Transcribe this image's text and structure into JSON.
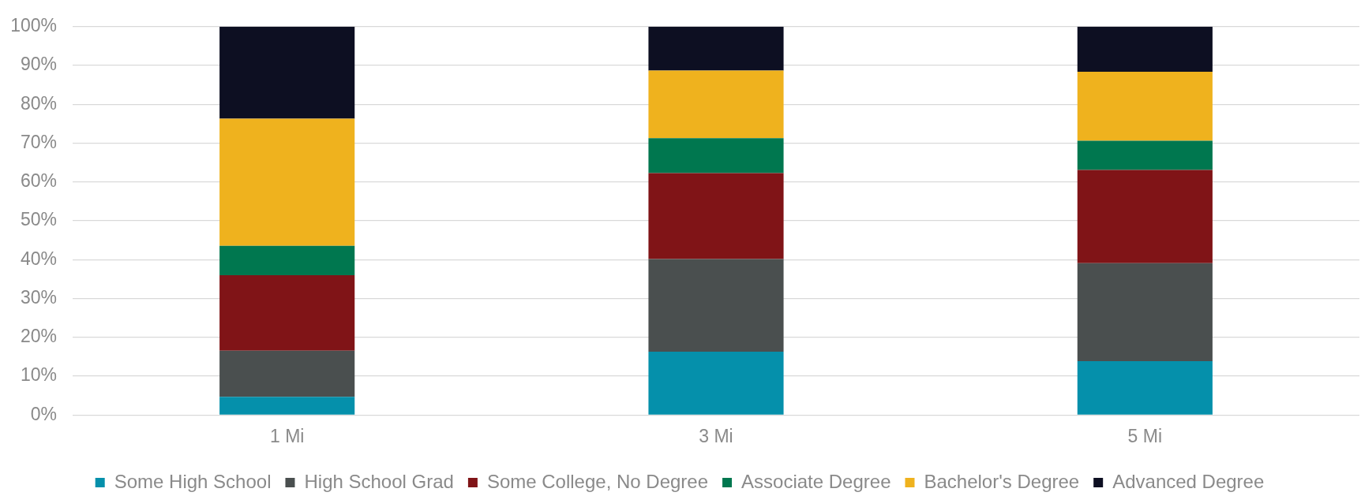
{
  "chart_data": {
    "type": "bar",
    "stacked": true,
    "categories": [
      "1 Mi",
      "3 Mi",
      "5 Mi"
    ],
    "series": [
      {
        "name": "Some High School",
        "color": "#0590ab",
        "values": [
          4.7,
          16.3,
          13.9
        ]
      },
      {
        "name": "High School Grad",
        "color": "#4a4f4f",
        "values": [
          11.9,
          23.9,
          25.2
        ]
      },
      {
        "name": "Some College, No Degree",
        "color": "#801417",
        "values": [
          19.4,
          22.1,
          24.0
        ]
      },
      {
        "name": "Associate Degree",
        "color": "#00774f",
        "values": [
          7.6,
          9.0,
          7.5
        ]
      },
      {
        "name": "Bachelor's Degree",
        "color": "#efb21e",
        "values": [
          32.7,
          17.4,
          17.8
        ]
      },
      {
        "name": "Advanced Degree",
        "color": "#0d0f22",
        "values": [
          23.7,
          11.3,
          11.6
        ]
      }
    ],
    "ylim": [
      0,
      100
    ],
    "yticks": [
      {
        "value": 0,
        "label": "0%"
      },
      {
        "value": 10,
        "label": "10%"
      },
      {
        "value": 20,
        "label": "20%"
      },
      {
        "value": 30,
        "label": "30%"
      },
      {
        "value": 40,
        "label": "40%"
      },
      {
        "value": 50,
        "label": "50%"
      },
      {
        "value": 60,
        "label": "60%"
      },
      {
        "value": 70,
        "label": "70%"
      },
      {
        "value": 80,
        "label": "80%"
      },
      {
        "value": 90,
        "label": "90%"
      },
      {
        "value": 100,
        "label": "100%"
      }
    ],
    "grid": "y",
    "legend": "bottom"
  }
}
